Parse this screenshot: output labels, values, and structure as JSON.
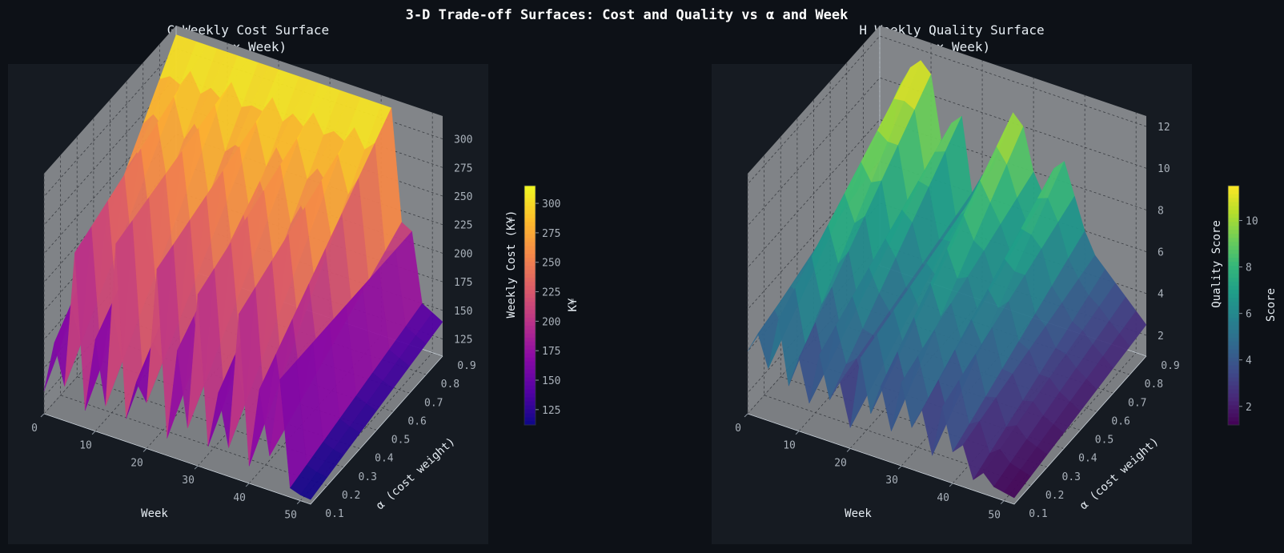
{
  "figure": {
    "suptitle": "3-D Trade-off Surfaces: Cost and Quality vs α and Week"
  },
  "chart_data": [
    {
      "type": "surface3d",
      "title_line1": "G  Weekly Cost Surface",
      "title_line2": "(α × Week)",
      "xlabel": "Week",
      "ylabel": "α (cost weight)",
      "zlabel": "Weekly Cost (K¥)",
      "colorbar_label": "K¥",
      "colormap": "plasma",
      "x_ticks": [
        "0",
        "10",
        "20",
        "30",
        "40",
        "50"
      ],
      "y_ticks": [
        "0.1",
        "0.2",
        "0.3",
        "0.4",
        "0.5",
        "0.6",
        "0.7",
        "0.8",
        "0.9"
      ],
      "z_ticks": [
        "125",
        "150",
        "175",
        "200",
        "225",
        "250",
        "275",
        "300"
      ],
      "colorbar_ticks": [
        "125",
        "150",
        "175",
        "200",
        "225",
        "250",
        "275",
        "300"
      ],
      "xlim": [
        0,
        52
      ],
      "ylim": [
        0.1,
        0.9
      ],
      "zlim": [
        110,
        320
      ],
      "vmin": 112,
      "vmax": 315,
      "weeks": [
        0,
        2,
        4,
        6,
        8,
        10,
        12,
        14,
        16,
        18,
        20,
        22,
        24,
        26,
        28,
        30,
        32,
        34,
        36,
        38,
        40,
        42,
        44,
        46,
        48,
        50,
        52
      ],
      "alphas": [
        0.1,
        0.2,
        0.3,
        0.4,
        0.5,
        0.6,
        0.7,
        0.8,
        0.9
      ],
      "surface_low": [
        130,
        175,
        140,
        260,
        125,
        190,
        135,
        280,
        130,
        165,
        150,
        270,
        125,
        205,
        140,
        260,
        130,
        180,
        135,
        255,
        125,
        195,
        140,
        210,
        118,
        115,
        114
      ],
      "surface_high": [
        312,
        312,
        312,
        312,
        312,
        312,
        312,
        312,
        312,
        312,
        312,
        312,
        312,
        312,
        312,
        312,
        312,
        312,
        312,
        312,
        312,
        312,
        215,
        210,
        150,
        145,
        140
      ]
    },
    {
      "type": "surface3d",
      "title_line1": "H  Weekly Quality Surface",
      "title_line2": "(α × Week)",
      "xlabel": "Week",
      "ylabel": "α (cost weight)",
      "zlabel": "Quality Score",
      "colorbar_label": "Score",
      "colormap": "viridis",
      "x_ticks": [
        "0",
        "10",
        "20",
        "30",
        "40",
        "50"
      ],
      "y_ticks": [
        "0.1",
        "0.2",
        "0.3",
        "0.4",
        "0.5",
        "0.6",
        "0.7",
        "0.8",
        "0.9"
      ],
      "z_ticks": [
        "2",
        "4",
        "6",
        "8",
        "10",
        "12"
      ],
      "colorbar_ticks": [
        "2",
        "4",
        "6",
        "8",
        "10"
      ],
      "xlim": [
        0,
        52
      ],
      "ylim": [
        0.1,
        0.9
      ],
      "zlim": [
        1,
        12.5
      ],
      "vmin": 1.2,
      "vmax": 11.5,
      "weeks": [
        0,
        2,
        4,
        6,
        8,
        10,
        12,
        14,
        16,
        18,
        20,
        22,
        24,
        26,
        28,
        30,
        32,
        34,
        36,
        38,
        40,
        42,
        44,
        46,
        48,
        50,
        52
      ],
      "alphas": [
        0.1,
        0.2,
        0.3,
        0.4,
        0.5,
        0.6,
        0.7,
        0.8,
        0.9
      ],
      "surface_low": [
        4,
        5,
        3.5,
        6,
        3,
        4.5,
        2.5,
        5,
        3,
        4,
        2,
        5.5,
        3,
        4.5,
        2.5,
        5,
        3,
        4,
        2,
        4.5,
        2.5,
        3,
        1.5,
        2,
        1.5,
        1.4,
        1.3
      ],
      "surface_high": [
        6.5,
        7,
        10,
        11,
        11.5,
        11,
        8,
        9,
        9.5,
        6,
        7,
        7.5,
        9,
        10.5,
        10,
        8,
        7,
        8.5,
        9,
        7.5,
        6,
        5,
        4.5,
        4,
        3.5,
        3,
        2.5
      ]
    }
  ]
}
